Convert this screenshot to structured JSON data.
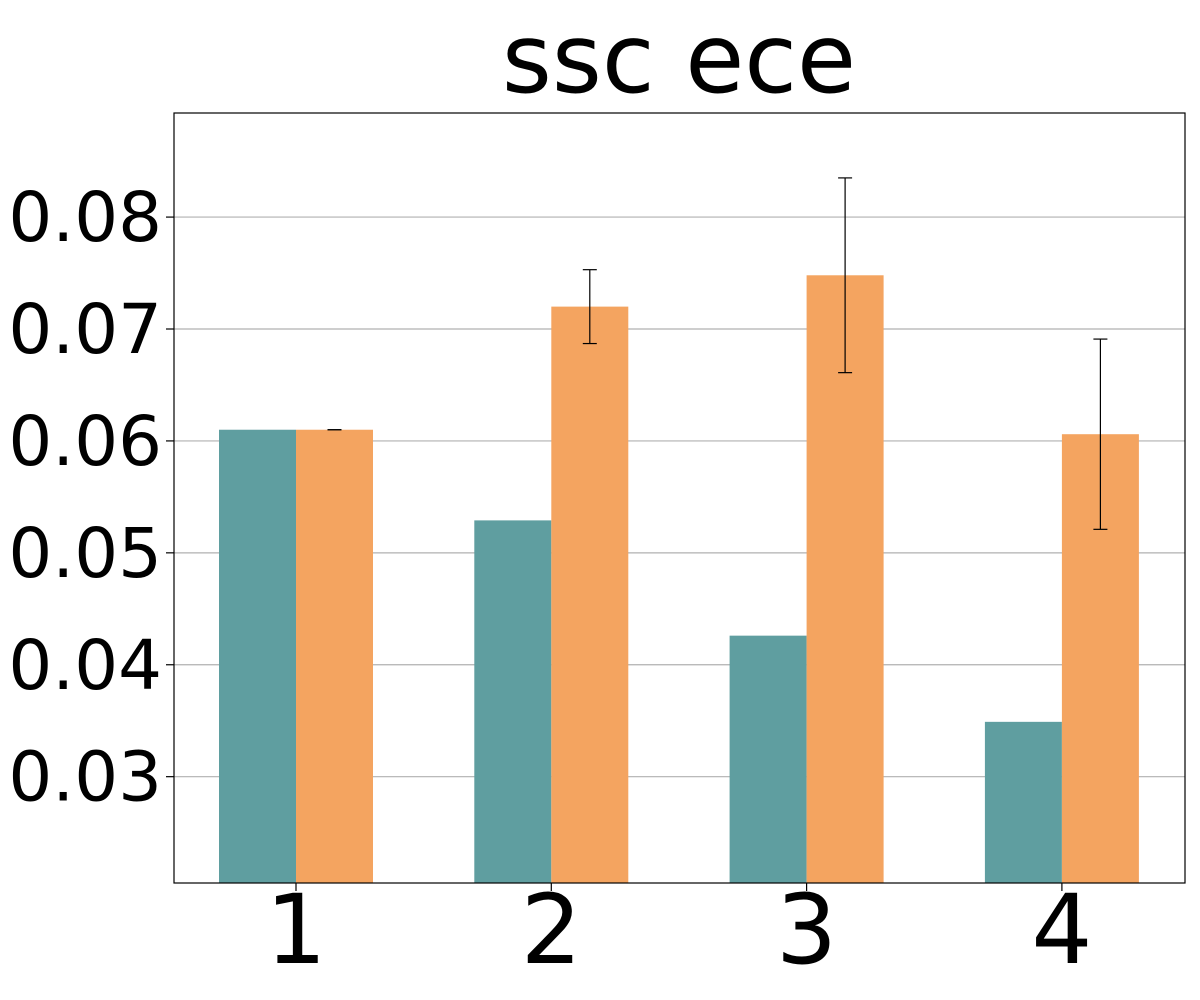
{
  "chart_data": {
    "type": "bar",
    "title": "ssc ece",
    "xlabel": "",
    "ylabel": "",
    "categories": [
      "1",
      "2",
      "3",
      "4"
    ],
    "ylim": [
      0.0205,
      0.0893
    ],
    "yticks": [
      0.03,
      0.04,
      0.05,
      0.06,
      0.07,
      0.08
    ],
    "ytick_labels": [
      "0.03",
      "0.04",
      "0.05",
      "0.06",
      "0.07",
      "0.08"
    ],
    "grid": "y",
    "legend": "none",
    "series": [
      {
        "color": "#5f9ea0",
        "values": [
          0.061,
          0.0529,
          0.0426,
          0.0349
        ]
      },
      {
        "color": "#f4a460",
        "values": [
          0.061,
          0.072,
          0.0748,
          0.0606
        ],
        "error": [
          0.0,
          0.0033,
          0.0087,
          0.0085
        ]
      }
    ]
  }
}
